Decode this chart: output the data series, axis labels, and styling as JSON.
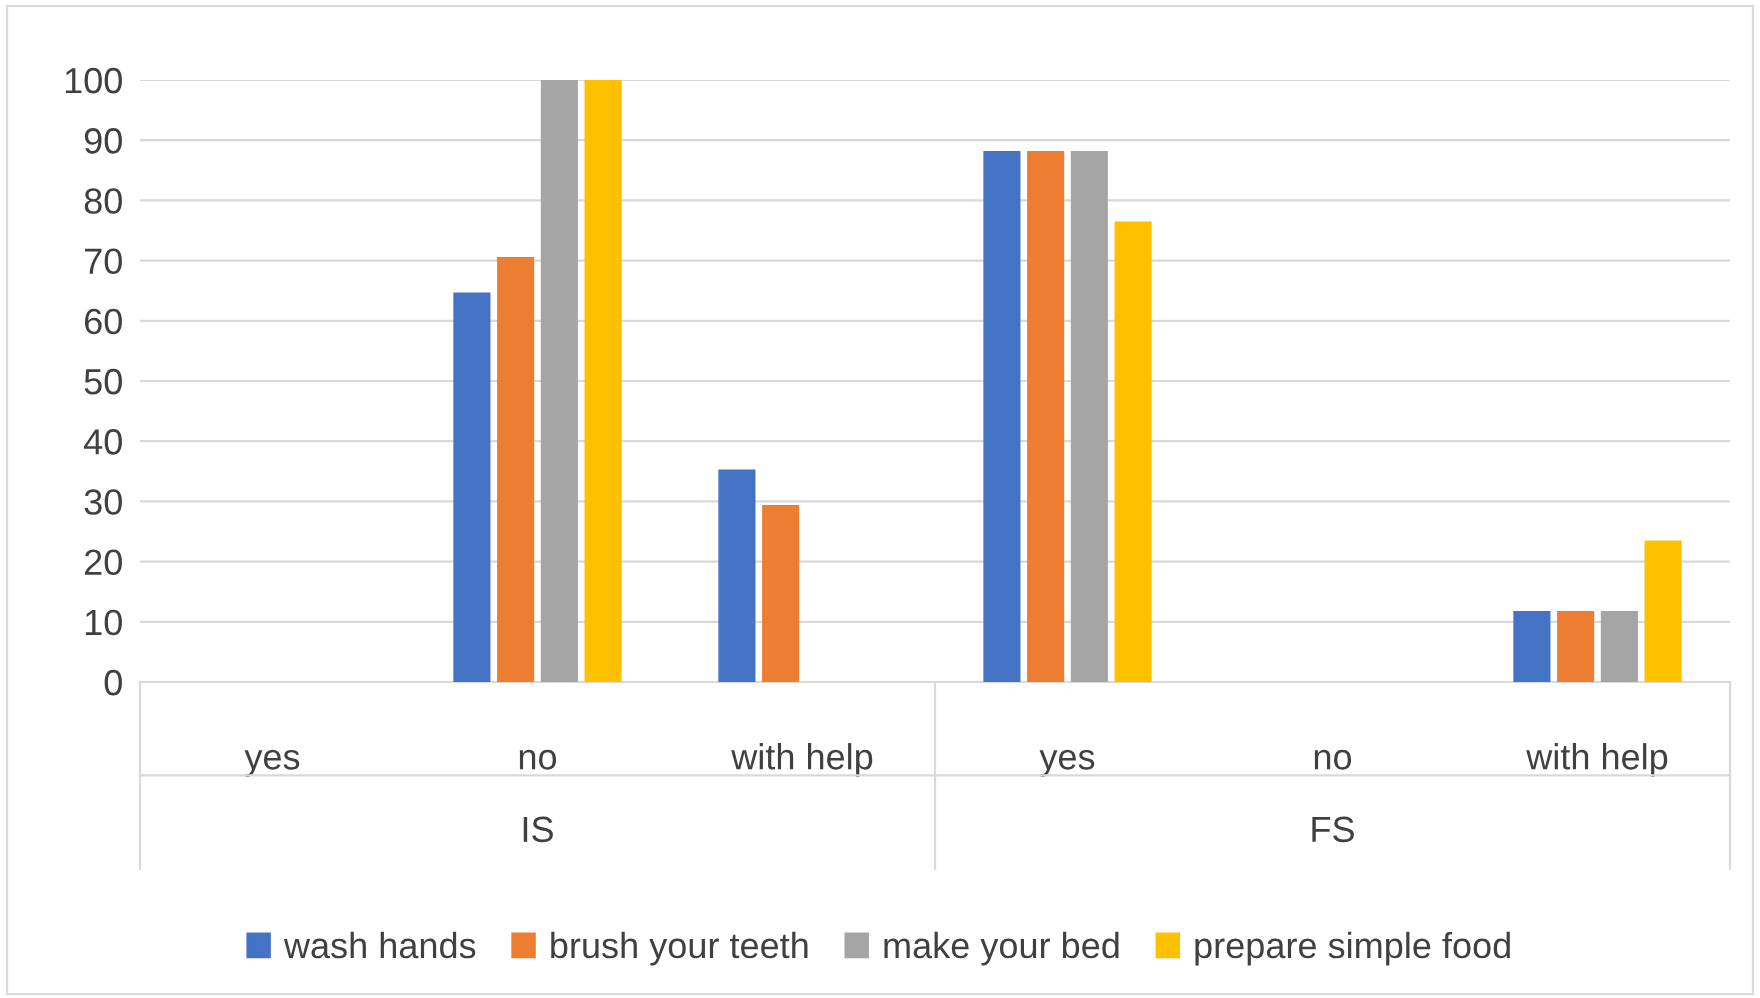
{
  "chart_data": {
    "type": "bar",
    "categories": [
      "yes",
      "no",
      "with help",
      "yes",
      "no",
      "with help"
    ],
    "series": [
      {
        "name": "wash hands",
        "color": "#4472c4",
        "values": [
          0,
          64.7,
          35.3,
          88.2,
          0,
          11.8
        ]
      },
      {
        "name": "brush your teeth",
        "color": "#ed7d31",
        "values": [
          0,
          70.6,
          29.4,
          88.2,
          0,
          11.8
        ]
      },
      {
        "name": "make your bed",
        "color": "#a5a5a5",
        "values": [
          0,
          100,
          0,
          88.2,
          0,
          11.8
        ]
      },
      {
        "name": "prepare simple food",
        "color": "#ffc000",
        "values": [
          0,
          100,
          0,
          76.5,
          0,
          23.5
        ]
      }
    ],
    "annotations": [
      "IS",
      "FS"
    ],
    "ylim": [
      0,
      100
    ],
    "yticks": [
      0,
      10,
      20,
      30,
      40,
      50,
      60,
      70,
      80,
      90,
      100
    ],
    "grid": "y",
    "legend": "bottom"
  }
}
